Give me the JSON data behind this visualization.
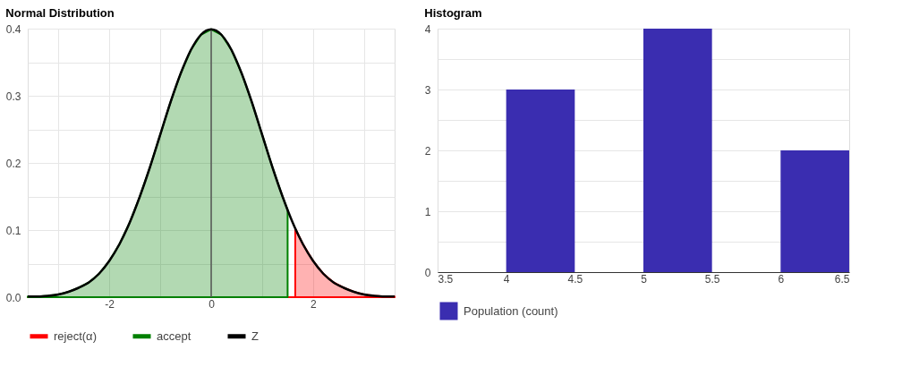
{
  "chart_data": [
    {
      "type": "area",
      "title": "Normal Distribution",
      "series": [
        {
          "name": "reject(α)",
          "color": "#ff0000",
          "x": [
            -3.6,
            1.65,
            1.65,
            1.8,
            2.0,
            2.2,
            2.4,
            2.6,
            2.8,
            3.0,
            3.2,
            3.4,
            3.6
          ],
          "values": [
            0,
            0,
            0.102,
            0.079,
            0.054,
            0.035,
            0.022,
            0.014,
            0.008,
            0.004,
            0.002,
            0.001,
            0.001
          ]
        },
        {
          "name": "accept",
          "color": "#008000",
          "x": [
            -3.6,
            -3.4,
            -3.2,
            -3.0,
            -2.8,
            -2.6,
            -2.4,
            -2.2,
            -2.0,
            -1.8,
            -1.6,
            -1.4,
            -1.2,
            -1.0,
            -0.8,
            -0.6,
            -0.4,
            -0.2,
            0,
            0.2,
            0.4,
            0.6,
            0.8,
            1.0,
            1.2,
            1.4,
            1.5,
            1.5
          ],
          "values": [
            0.001,
            0.001,
            0.002,
            0.004,
            0.008,
            0.014,
            0.022,
            0.035,
            0.054,
            0.079,
            0.111,
            0.15,
            0.194,
            0.242,
            0.29,
            0.333,
            0.368,
            0.391,
            0.399,
            0.391,
            0.368,
            0.333,
            0.29,
            0.242,
            0.194,
            0.15,
            0.13,
            0
          ]
        },
        {
          "name": "Z",
          "type": "line",
          "color": "#000000",
          "x": [
            -3.6,
            -3.4,
            -3.2,
            -3.0,
            -2.8,
            -2.6,
            -2.4,
            -2.2,
            -2.0,
            -1.8,
            -1.6,
            -1.4,
            -1.2,
            -1.0,
            -0.8,
            -0.6,
            -0.4,
            -0.2,
            0,
            0.2,
            0.4,
            0.6,
            0.8,
            1.0,
            1.2,
            1.4,
            1.6,
            1.8,
            2.0,
            2.2,
            2.4,
            2.6,
            2.8,
            3.0,
            3.2,
            3.4,
            3.6
          ],
          "values": [
            0.001,
            0.001,
            0.002,
            0.004,
            0.008,
            0.014,
            0.022,
            0.035,
            0.054,
            0.079,
            0.111,
            0.15,
            0.194,
            0.242,
            0.29,
            0.333,
            0.368,
            0.391,
            0.399,
            0.391,
            0.368,
            0.333,
            0.29,
            0.242,
            0.194,
            0.15,
            0.111,
            0.079,
            0.054,
            0.035,
            0.022,
            0.014,
            0.008,
            0.004,
            0.002,
            0.001,
            0.001
          ]
        }
      ],
      "xlim": [
        -3.6,
        3.6
      ],
      "xticks": [
        {
          "value": -3,
          "label": null
        },
        -2,
        {
          "value": -1,
          "label": null
        },
        0,
        {
          "value": 1,
          "label": null
        },
        2,
        {
          "value": 3,
          "label": null
        }
      ],
      "ylim": [
        0,
        0.4
      ],
      "yticks": [
        {
          "value": 0,
          "label": "0.0"
        },
        {
          "value": 0.05,
          "label": null
        },
        0.1,
        {
          "value": 0.15,
          "label": null
        },
        0.2,
        {
          "value": 0.25,
          "label": null
        },
        0.3,
        {
          "value": 0.35,
          "label": null
        },
        0.4
      ],
      "ref_lines": [
        {
          "axis": "x",
          "value": 0,
          "color": "#555555"
        }
      ],
      "grid": true,
      "legend": "bottom"
    },
    {
      "type": "histogram",
      "title": "Histogram",
      "bins": [
        4,
        4.5,
        5,
        5.5,
        6,
        6.5
      ],
      "series": [
        {
          "name": "Population (count)",
          "color": "#3a2db0",
          "values": [
            3,
            0,
            4,
            0,
            2
          ]
        }
      ],
      "xlim": [
        3.5,
        6.5
      ],
      "xticks": [
        3.5,
        4,
        4.5,
        5,
        5.5,
        6,
        6.5
      ],
      "ylim": [
        0,
        4
      ],
      "yticks": [
        0,
        {
          "value": 0.5,
          "label": null
        },
        1,
        {
          "value": 1.5,
          "label": null
        },
        2,
        {
          "value": 2.5,
          "label": null
        },
        3,
        {
          "value": 3.5,
          "label": null
        },
        4
      ],
      "grid": "y",
      "legend": "bottom"
    }
  ]
}
